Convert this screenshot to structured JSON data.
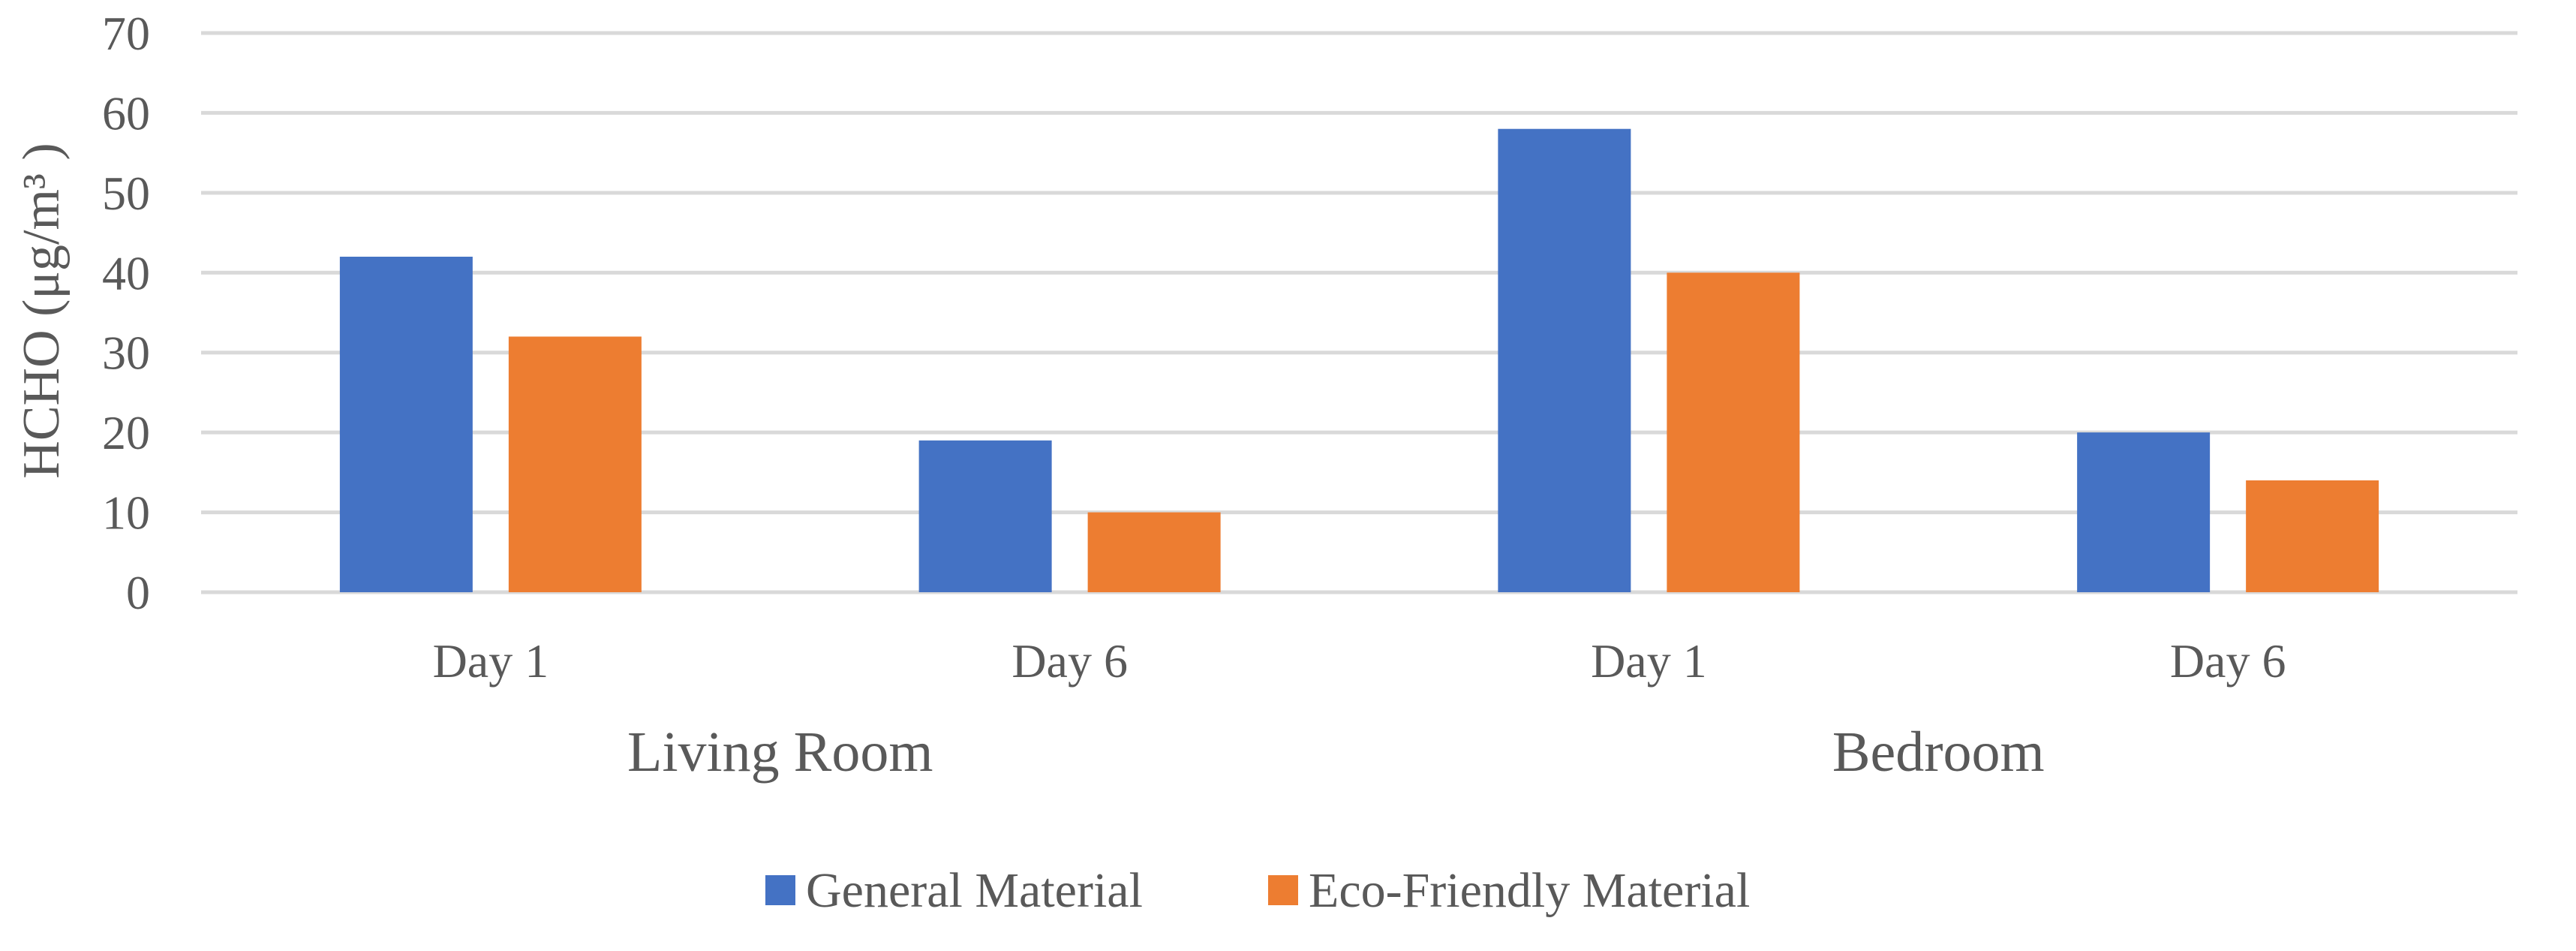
{
  "chart_data": {
    "type": "bar",
    "groups": [
      {
        "label": "Living Room",
        "categories": [
          "Day 1",
          "Day 6"
        ]
      },
      {
        "label": "Bedroom",
        "categories": [
          "Day 1",
          "Day 6"
        ]
      }
    ],
    "categories": [
      "Day 1",
      "Day 6",
      "Day 1",
      "Day 6"
    ],
    "series": [
      {
        "name": "General Material",
        "color": "#4472C4",
        "values": [
          42,
          19,
          58,
          20
        ]
      },
      {
        "name": "Eco-Friendly Material",
        "color": "#ED7D31",
        "values": [
          32,
          10,
          40,
          14
        ]
      }
    ],
    "ylabel": "HCHO (μg/m³ )",
    "ylim": [
      0,
      70
    ],
    "yticks": [
      0,
      10,
      20,
      30,
      40,
      50,
      60,
      70
    ],
    "grid": true,
    "legend_position": "bottom"
  }
}
